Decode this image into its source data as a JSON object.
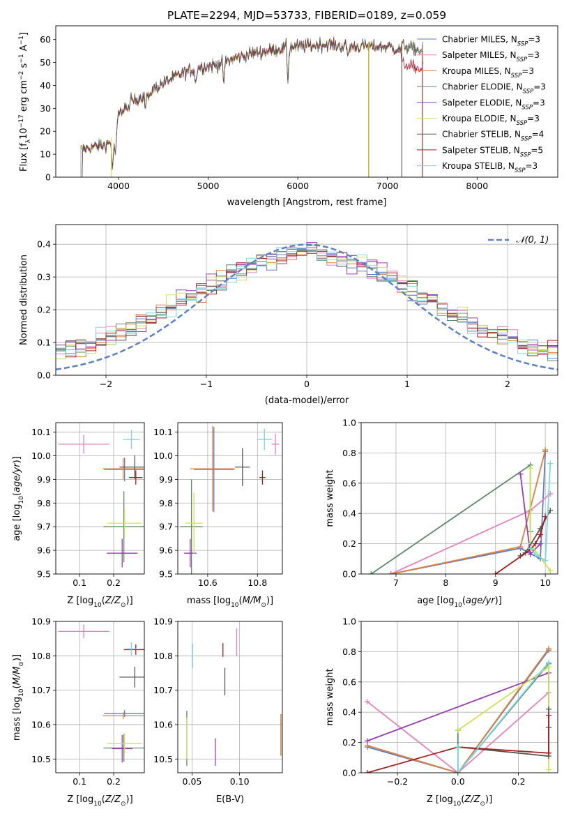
{
  "colors": {
    "Chabrier MILES": "#5a80c8",
    "Salpeter MILES": "#e680bf",
    "Kroupa MILES": "#e0803a",
    "Chabrier ELODIE": "#5a8a6a",
    "Salpeter ELODIE": "#9a3ab4",
    "Kroupa ELODIE": "#c8e650",
    "Chabrier STELIB": "#555555",
    "Salpeter STELIB": "#a81e1e",
    "Kroupa STELIB": "#7ad8e0",
    "normal": "#5a80c8"
  },
  "chart_data": [
    {
      "id": "spectrum",
      "type": "line",
      "title": "PLATE=2294, MJD=53733, FIBERID=0189, z=0.059",
      "xlabel": "wavelength [Angstrom, rest frame]",
      "ylabel": "Flux [fλ10⁻¹⁷ erg cm⁻² s⁻¹ A⁻¹]",
      "xlim": [
        3300,
        8900
      ],
      "ylim": [
        0,
        66
      ],
      "xticks": [
        4000,
        5000,
        6000,
        7000,
        8000
      ],
      "yticks": [
        0,
        10,
        20,
        30,
        40,
        50,
        60
      ],
      "grid": false,
      "legend_position": "top-right",
      "series": [
        {
          "name": "Chabrier MILES, N_SSP=3",
          "label": "Chabrier MILES, N",
          "sub": "SSP",
          "tail": "=3"
        },
        {
          "name": "Salpeter MILES, N_SSP=3",
          "label": "Salpeter MILES, N",
          "sub": "SSP",
          "tail": "=3"
        },
        {
          "name": "Kroupa MILES, N_SSP=3",
          "label": "Kroupa MILES, N",
          "sub": "SSP",
          "tail": "=3"
        },
        {
          "name": "Chabrier ELODIE, N_SSP=3",
          "label": "Chabrier ELODIE, N",
          "sub": "SSP",
          "tail": "=3"
        },
        {
          "name": "Salpeter ELODIE, N_SSP=3",
          "label": "Salpeter ELODIE, N",
          "sub": "SSP",
          "tail": "=3"
        },
        {
          "name": "Kroupa ELODIE, N_SSP=3",
          "label": "Kroupa ELODIE, N",
          "sub": "SSP",
          "tail": "=3"
        },
        {
          "name": "Chabrier STELIB, N_SSP=4",
          "label": "Chabrier STELIB, N",
          "sub": "SSP",
          "tail": "=4"
        },
        {
          "name": "Salpeter STELIB, N_SSP=5",
          "label": "Salpeter STELIB, N",
          "sub": "SSP",
          "tail": "=5"
        },
        {
          "name": "Kroupa STELIB, N_SSP=3",
          "label": "Kroupa STELIB, N",
          "sub": "SSP",
          "tail": "=3"
        }
      ],
      "continuum": {
        "x": [
          3580,
          3700,
          3850,
          3950,
          4000,
          4100,
          4300,
          4500,
          4700,
          4900,
          5100,
          5300,
          5500,
          5800,
          6000,
          6300,
          6500,
          6800,
          7000,
          7200,
          7400
        ],
        "y": [
          12,
          13,
          14,
          16,
          27,
          32,
          36,
          41,
          45,
          48,
          49,
          52,
          54,
          56,
          57,
          58,
          57,
          57,
          57,
          55,
          53
        ]
      }
    },
    {
      "id": "residuals",
      "type": "line",
      "xlabel": "(data-model)/error",
      "ylabel": "Normed distribution",
      "xlim": [
        -2.5,
        2.5
      ],
      "ylim": [
        0,
        0.46
      ],
      "xticks": [
        -2,
        -1,
        0,
        1,
        2
      ],
      "yticks": [
        0.0,
        0.1,
        0.2,
        0.3,
        0.4
      ],
      "grid": true,
      "legend": "𝒩(0, 1)",
      "legend_position": "top-right",
      "normal": {
        "mean": 0,
        "sigma": 1
      }
    },
    {
      "id": "age-vs-Z",
      "type": "scatter",
      "xlabel": "Z [log₁₀(Z/Z⊙)]",
      "ylabel": "age  [log₁₀(age/yr)]",
      "xlim": [
        0.03,
        0.29
      ],
      "ylim": [
        9.5,
        10.14
      ],
      "xticks": [
        0.1,
        0.2
      ],
      "yticks": [
        9.5,
        9.6,
        9.7,
        9.8,
        9.9,
        10.0,
        10.1
      ],
      "grid": true,
      "points": [
        {
          "series": "Chabrier MILES",
          "x": 0.232,
          "y": 9.942,
          "xerr": 0.06,
          "yerr": 0.05
        },
        {
          "series": "Salpeter MILES",
          "x": 0.112,
          "y": 10.049,
          "xerr": 0.075,
          "yerr": 0.04
        },
        {
          "series": "Kroupa MILES",
          "x": 0.228,
          "y": 9.945,
          "xerr": 0.06,
          "yerr": 0.045
        },
        {
          "series": "Chabrier ELODIE",
          "x": 0.23,
          "y": 9.7,
          "xerr": 0.06,
          "yerr": 0.15
        },
        {
          "series": "Salpeter ELODIE",
          "x": 0.225,
          "y": 9.588,
          "xerr": 0.045,
          "yerr": 0.06
        },
        {
          "series": "Kroupa ELODIE",
          "x": 0.232,
          "y": 9.715,
          "xerr": 0.05,
          "yerr": 0.06
        },
        {
          "series": "Chabrier STELIB",
          "x": 0.262,
          "y": 9.952,
          "xerr": 0.045,
          "yerr": 0.05
        },
        {
          "series": "Salpeter STELIB",
          "x": 0.265,
          "y": 9.908,
          "xerr": 0.02,
          "yerr": 0.03
        },
        {
          "series": "Kroupa STELIB",
          "x": 0.252,
          "y": 10.069,
          "xerr": 0.025,
          "yerr": 0.04
        }
      ]
    },
    {
      "id": "age-vs-mass",
      "type": "scatter",
      "xlabel": "mass [log₁₀(M/M⊙)]",
      "xlim": [
        10.48,
        10.9
      ],
      "ylim": [
        9.5,
        10.14
      ],
      "xticks": [
        10.6,
        10.8
      ],
      "yticks": [
        9.5,
        9.6,
        9.7,
        9.8,
        9.9,
        10.0,
        10.1
      ],
      "grid": true,
      "points": [
        {
          "series": "Chabrier MILES",
          "x": 10.625,
          "y": 9.942,
          "xerr": 0.08,
          "yerr": 0.18
        },
        {
          "series": "Salpeter MILES",
          "x": 10.872,
          "y": 10.049,
          "xerr": 0.015,
          "yerr": 0.045
        },
        {
          "series": "Kroupa MILES",
          "x": 10.62,
          "y": 9.945,
          "xerr": 0.09,
          "yerr": 0.18
        },
        {
          "series": "Chabrier ELODIE",
          "x": 10.535,
          "y": 9.7,
          "xerr": 0.045,
          "yerr": 0.2
        },
        {
          "series": "Salpeter ELODIE",
          "x": 10.53,
          "y": 9.588,
          "xerr": 0.025,
          "yerr": 0.06
        },
        {
          "series": "Kroupa ELODIE",
          "x": 10.545,
          "y": 9.715,
          "xerr": 0.035,
          "yerr": 0.13
        },
        {
          "series": "Chabrier STELIB",
          "x": 10.74,
          "y": 9.952,
          "xerr": 0.03,
          "yerr": 0.08
        },
        {
          "series": "Salpeter STELIB",
          "x": 10.82,
          "y": 9.908,
          "xerr": 0.012,
          "yerr": 0.03
        },
        {
          "series": "Kroupa STELIB",
          "x": 10.828,
          "y": 10.069,
          "xerr": 0.03,
          "yerr": 0.045
        }
      ]
    },
    {
      "id": "weight-vs-age",
      "type": "line",
      "xlabel": "age  [log₁₀(age/yr)]",
      "ylabel": "mass weight",
      "xlim": [
        6.3,
        10.25
      ],
      "ylim": [
        0,
        1.0
      ],
      "xticks": [
        7,
        8,
        9,
        10
      ],
      "yticks": [
        0.0,
        0.2,
        0.4,
        0.6,
        0.8,
        1.0
      ],
      "grid": true,
      "series": [
        {
          "name": "Chabrier MILES",
          "x": [
            6.9,
            9.5,
            9.9,
            10.0
          ],
          "y": [
            0.0,
            0.17,
            0.1,
            0.81
          ]
        },
        {
          "name": "Salpeter MILES",
          "x": [
            6.9,
            9.7,
            10.1
          ],
          "y": [
            0.0,
            0.42,
            0.53
          ]
        },
        {
          "name": "Kroupa MILES",
          "x": [
            6.9,
            9.5,
            10.0
          ],
          "y": [
            0.0,
            0.18,
            0.82
          ]
        },
        {
          "name": "Chabrier ELODIE",
          "x": [
            6.5,
            9.7,
            9.7
          ],
          "y": [
            0.0,
            0.72,
            0.28
          ]
        },
        {
          "name": "Salpeter ELODIE",
          "x": [
            9.5,
            9.7,
            9.9
          ],
          "y": [
            0.66,
            0.13,
            0.2
          ]
        },
        {
          "name": "Kroupa ELODIE",
          "x": [
            9.7,
            9.7,
            10.1
          ],
          "y": [
            0.7,
            0.2,
            0.02
          ]
        },
        {
          "name": "Chabrier STELIB",
          "x": [
            9.5,
            9.6,
            9.9,
            10.1
          ],
          "y": [
            0.12,
            0.14,
            0.3,
            0.42
          ]
        },
        {
          "name": "Salpeter STELIB",
          "x": [
            9.0,
            9.7,
            9.8,
            9.9,
            10.0
          ],
          "y": [
            0.0,
            0.16,
            0.2,
            0.26,
            0.38
          ]
        },
        {
          "name": "Kroupa STELIB",
          "x": [
            9.7,
            9.8,
            10.0,
            10.1
          ],
          "y": [
            0.17,
            0.13,
            0.09,
            0.73
          ]
        }
      ]
    },
    {
      "id": "mass-vs-Z",
      "type": "scatter",
      "xlabel": "Z [log₁₀(Z/Z⊙)]",
      "ylabel": "mass [log₁₀(M/M⊙)]",
      "xlim": [
        0.03,
        0.29
      ],
      "ylim": [
        10.46,
        10.9
      ],
      "xticks": [
        0.1,
        0.2
      ],
      "yticks": [
        10.5,
        10.6,
        10.7,
        10.8,
        10.9
      ],
      "grid": true,
      "points": [
        {
          "series": "Chabrier MILES",
          "x": 0.232,
          "y": 10.632,
          "xerr": 0.06,
          "yerr": 0.01
        },
        {
          "series": "Salpeter MILES",
          "x": 0.112,
          "y": 10.871,
          "xerr": 0.075,
          "yerr": 0.02
        },
        {
          "series": "Kroupa MILES",
          "x": 0.228,
          "y": 10.626,
          "xerr": 0.06,
          "yerr": 0.01
        },
        {
          "series": "Chabrier ELODIE",
          "x": 0.23,
          "y": 10.532,
          "xerr": 0.06,
          "yerr": 0.04
        },
        {
          "series": "Salpeter ELODIE",
          "x": 0.225,
          "y": 10.53,
          "xerr": 0.03,
          "yerr": 0.04
        },
        {
          "series": "Kroupa ELODIE",
          "x": 0.232,
          "y": 10.545,
          "xerr": 0.05,
          "yerr": 0.03
        },
        {
          "series": "Chabrier STELIB",
          "x": 0.262,
          "y": 10.738,
          "xerr": 0.045,
          "yerr": 0.03
        },
        {
          "series": "Salpeter STELIB",
          "x": 0.265,
          "y": 10.818,
          "xerr": 0.035,
          "yerr": 0.015
        },
        {
          "series": "Kroupa STELIB",
          "x": 0.252,
          "y": 10.82,
          "xerr": 0.015,
          "yerr": 0.02
        }
      ]
    },
    {
      "id": "mass-vs-ebv",
      "type": "scatter",
      "xlabel": "E(B-V)",
      "xlim": [
        0.035,
        0.145
      ],
      "ylim": [
        10.46,
        10.9
      ],
      "xticks": [
        0.05,
        0.1
      ],
      "yticks": [
        10.5,
        10.6,
        10.7,
        10.8,
        10.9
      ],
      "grid": true,
      "points": [
        {
          "series": "Chabrier MILES",
          "x": 0.1435,
          "y": 10.57,
          "yerr": 0.06
        },
        {
          "series": "Salpeter MILES",
          "x": 0.097,
          "y": 10.84,
          "yerr": 0.04
        },
        {
          "series": "Kroupa MILES",
          "x": 0.1435,
          "y": 10.57,
          "yerr": 0.06
        },
        {
          "series": "Chabrier ELODIE",
          "x": 0.0445,
          "y": 10.56,
          "yerr": 0.08
        },
        {
          "series": "Salpeter ELODIE",
          "x": 0.0745,
          "y": 10.52,
          "yerr": 0.04
        },
        {
          "series": "Kroupa ELODIE",
          "x": 0.0445,
          "y": 10.56,
          "yerr": 0.06
        },
        {
          "series": "Chabrier STELIB",
          "x": 0.0845,
          "y": 10.725,
          "yerr": 0.04
        },
        {
          "series": "Salpeter STELIB",
          "x": 0.0825,
          "y": 10.817,
          "yerr": 0.02
        },
        {
          "series": "Kroupa STELIB",
          "x": 0.0505,
          "y": 10.8,
          "yerr": 0.035
        }
      ]
    },
    {
      "id": "weight-vs-Z",
      "type": "line",
      "xlabel": "Z [log₁₀(Z/Z⊙)]",
      "ylabel": "mass weight",
      "xlim": [
        -0.32,
        0.33
      ],
      "ylim": [
        0,
        1.0
      ],
      "xticks": [
        -0.2,
        0.0,
        0.2
      ],
      "yticks": [
        0.0,
        0.2,
        0.4,
        0.6,
        0.8,
        1.0
      ],
      "grid": true,
      "series": [
        {
          "name": "Chabrier MILES",
          "x": [
            -0.3,
            0.0,
            0.3
          ],
          "y": [
            0.17,
            0.0,
            0.81
          ]
        },
        {
          "name": "Salpeter MILES",
          "x": [
            -0.3,
            0.0,
            0.3
          ],
          "y": [
            0.47,
            0.0,
            0.53
          ]
        },
        {
          "name": "Kroupa MILES",
          "x": [
            -0.3,
            0.0,
            0.3
          ],
          "y": [
            0.18,
            0.0,
            0.82
          ]
        },
        {
          "name": "Chabrier ELODIE",
          "x": [
            0.0,
            0.0,
            0.3
          ],
          "y": [
            0.28,
            0.0,
            0.72
          ]
        },
        {
          "name": "Salpeter ELODIE",
          "x": [
            -0.3,
            0.3,
            0.3
          ],
          "y": [
            0.21,
            0.66,
            0.13
          ]
        },
        {
          "name": "Kroupa ELODIE",
          "x": [
            0.0,
            0.3,
            0.3
          ],
          "y": [
            0.28,
            0.7,
            0.02
          ]
        },
        {
          "name": "Chabrier STELIB",
          "x": [
            0.0,
            0.3,
            0.3,
            0.3
          ],
          "y": [
            0.17,
            0.11,
            0.3,
            0.42
          ]
        },
        {
          "name": "Salpeter STELIB",
          "x": [
            -0.3,
            0.0,
            0.3,
            0.3
          ],
          "y": [
            0.0,
            0.17,
            0.13,
            0.38
          ]
        },
        {
          "name": "Kroupa STELIB",
          "x": [
            0.0,
            0.0,
            0.3
          ],
          "y": [
            0.17,
            0.0,
            0.73
          ]
        }
      ]
    }
  ]
}
